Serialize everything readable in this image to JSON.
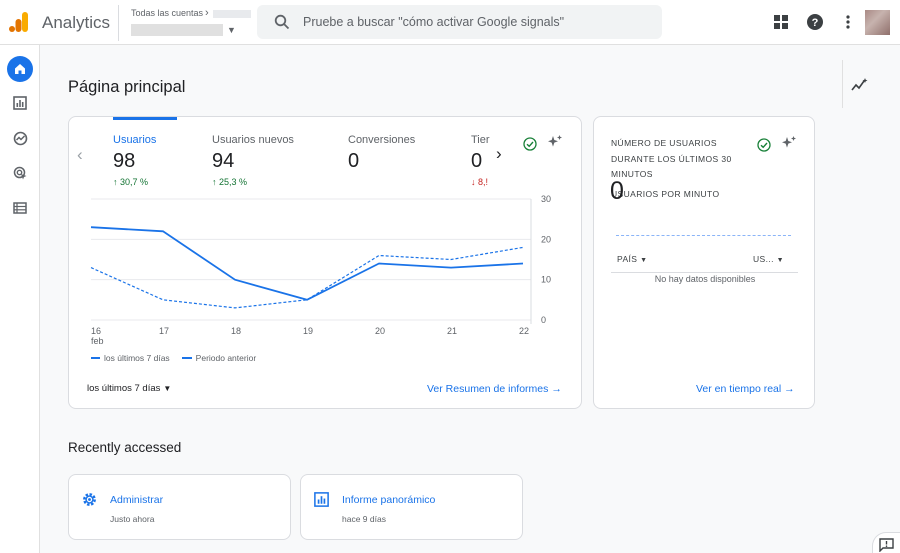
{
  "header": {
    "app_name": "Analytics",
    "account_label": "Todas las cuentas",
    "search_placeholder": "Pruebe a buscar \"cómo activar Google signals\""
  },
  "page": {
    "title": "Página principal"
  },
  "metrics": [
    {
      "label": "Usuarios",
      "value": "98",
      "change": "30,7 %",
      "direction": "up"
    },
    {
      "label": "Usuarios nuevos",
      "value": "94",
      "change": "25,3 %",
      "direction": "up"
    },
    {
      "label": "Conversiones",
      "value": "0",
      "change": "",
      "direction": "none"
    },
    {
      "label": "Tier",
      "value": "0",
      "change": "8,!",
      "direction": "down"
    }
  ],
  "chart_data": {
    "type": "line",
    "categories": [
      "16\nfeb",
      "17",
      "18",
      "19",
      "20",
      "21",
      "22"
    ],
    "x_tick_labels": [
      "16",
      "17",
      "18",
      "19",
      "20",
      "21",
      "22"
    ],
    "x_sub_label": "feb",
    "y_ticks": [
      "0",
      "10",
      "20",
      "30"
    ],
    "ylim": [
      0,
      30
    ],
    "grid": true,
    "series": [
      {
        "name": "los últimos 7 días",
        "style": "solid",
        "values": [
          23,
          22,
          10,
          5,
          14,
          13,
          14
        ]
      },
      {
        "name": "Periodo anterior",
        "style": "dashed",
        "values": [
          13,
          5,
          3,
          5,
          16,
          15,
          18
        ]
      }
    ],
    "color": "#1a73e8"
  },
  "main_card": {
    "range_label": "los últimos 7 días",
    "link": "Ver Resumen de informes"
  },
  "realtime": {
    "title": "Número de usuarios durante los últimos 30 minutos",
    "subtitle": "Usuarios por minuto",
    "value": "0",
    "col_country": "PAÍS",
    "col_users": "US...",
    "empty": "No hay datos disponibles",
    "link": "Ver en tiempo real"
  },
  "recent": {
    "title": "Recently accessed",
    "items": [
      {
        "label": "Administrar",
        "time": "Justo ahora",
        "icon": "gear-icon"
      },
      {
        "label": "Informe panorámico",
        "time": "hace 9 días",
        "icon": "report-icon"
      }
    ]
  },
  "colors": {
    "accent": "#1a73e8",
    "up": "#137333",
    "down": "#c5221f",
    "check": "#188038"
  }
}
